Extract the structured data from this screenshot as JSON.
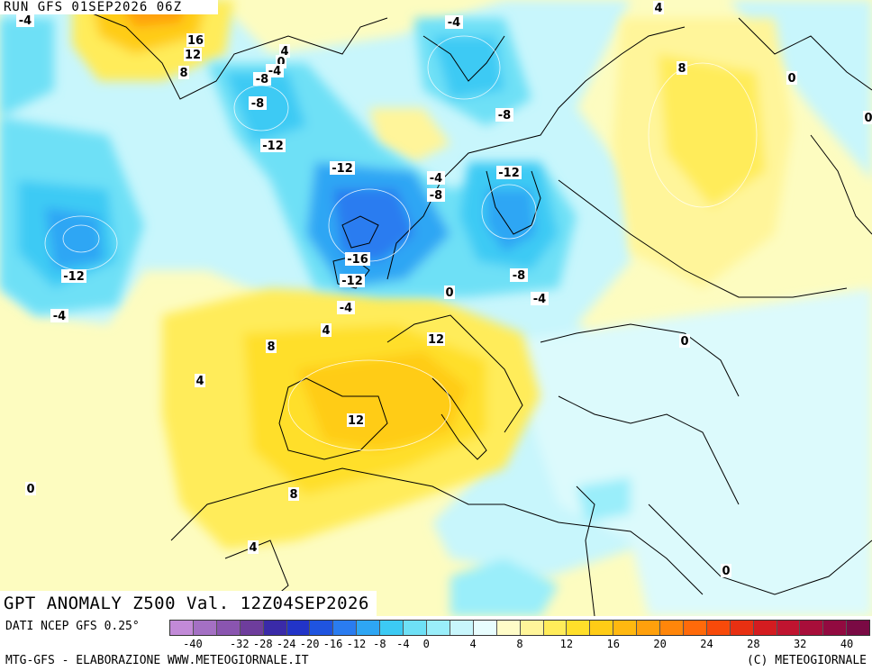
{
  "header": {
    "run_label": "RUN GFS 01SEP2026 06Z"
  },
  "title": {
    "text": "GPT ANOMALY Z500 Val. 12Z04SEP2026"
  },
  "footer": {
    "source": "DATI NCEP GFS 0.25°",
    "credit_left": "MTG-GFS - ELABORAZIONE WWW.METEOGIORNALE.IT",
    "credit_right": "(C) METEOGIORNALE"
  },
  "colorbar": {
    "tick_labels": [
      "-40",
      "-32",
      "-28",
      "-24",
      "-20",
      "-16",
      "-12",
      "-8",
      "-4",
      "0",
      "4",
      "8",
      "12",
      "16",
      "20",
      "24",
      "28",
      "32",
      "40"
    ],
    "colors": [
      "#c28ad8",
      "#a470c4",
      "#8a55b0",
      "#6e3d9c",
      "#3a2aa8",
      "#2234c8",
      "#1f54e0",
      "#2a7cf0",
      "#2ea6f4",
      "#3ccaf4",
      "#6ee0f6",
      "#9aeefa",
      "#c8f6fc",
      "#e8fdfe",
      "#fffcc8",
      "#fff59a",
      "#ffec5a",
      "#ffdf2a",
      "#ffcc16",
      "#ffb810",
      "#ffa00c",
      "#ff860a",
      "#ff6a0a",
      "#f84a0a",
      "#e83012",
      "#d41c20",
      "#c01430",
      "#a80e3a",
      "#920a40",
      "#7a0a44"
    ]
  },
  "colors": {
    "background": "#fdfcc0",
    "neutral_blue": "#dcfafc",
    "land_border": "#000000"
  },
  "contour_labels": [
    {
      "text": "-4"
    },
    {
      "text": "16"
    },
    {
      "text": "12"
    },
    {
      "text": "8"
    },
    {
      "text": "4"
    },
    {
      "text": "0"
    },
    {
      "text": "-4"
    },
    {
      "text": "-8"
    },
    {
      "text": "-12"
    },
    {
      "text": "-8"
    },
    {
      "text": "-12"
    },
    {
      "text": "-12"
    },
    {
      "text": "-4"
    },
    {
      "text": "-8"
    },
    {
      "text": "-12"
    },
    {
      "text": "-16"
    },
    {
      "text": "-12"
    },
    {
      "text": "-8"
    },
    {
      "text": "-4"
    },
    {
      "text": "-4"
    },
    {
      "text": "-12"
    },
    {
      "text": "-8"
    },
    {
      "text": "-4"
    },
    {
      "text": "0"
    },
    {
      "text": "4"
    },
    {
      "text": "8"
    },
    {
      "text": "0"
    },
    {
      "text": "0"
    },
    {
      "text": "4"
    },
    {
      "text": "4"
    },
    {
      "text": "8"
    },
    {
      "text": "12"
    },
    {
      "text": "12"
    },
    {
      "text": "8"
    },
    {
      "text": "4"
    },
    {
      "text": "0"
    },
    {
      "text": "0"
    },
    {
      "text": "0"
    },
    {
      "text": "-4"
    }
  ]
}
